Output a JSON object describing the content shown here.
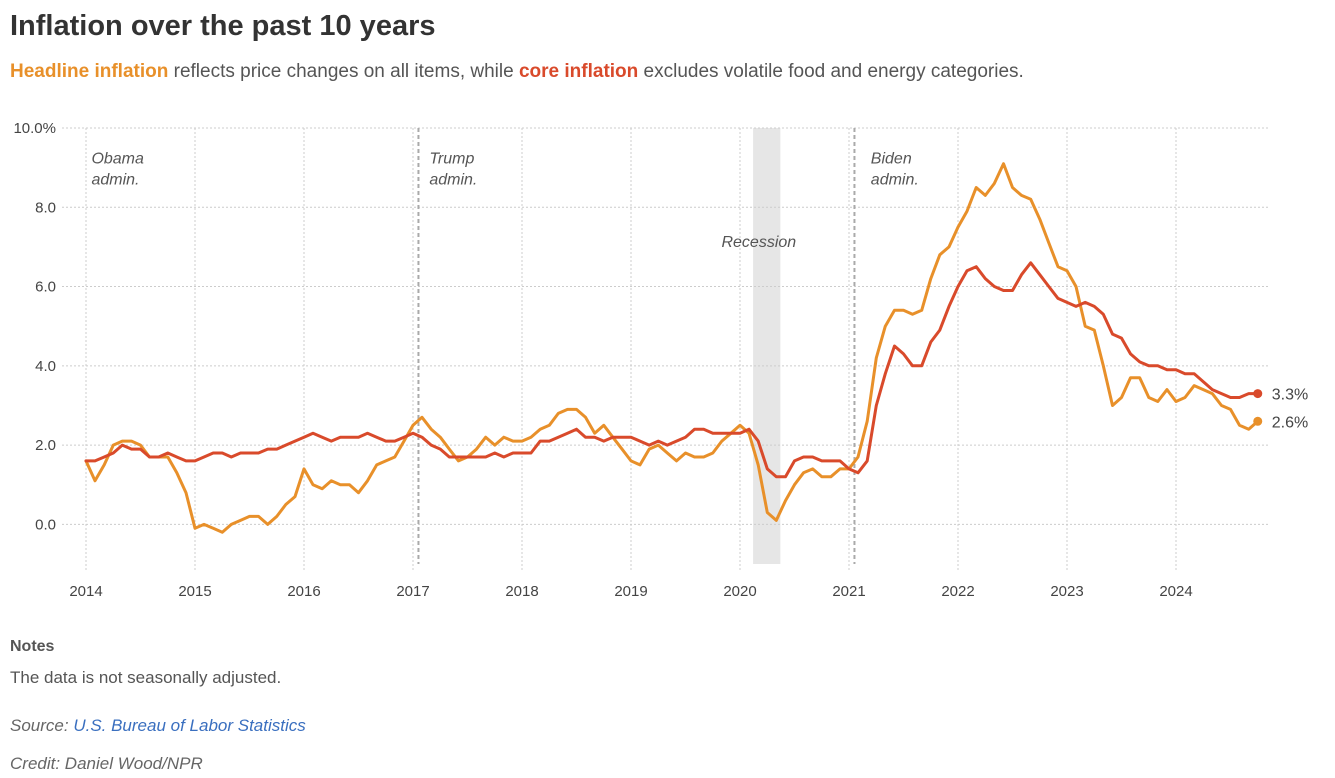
{
  "header": {
    "title": "Inflation over the past 10 years",
    "subtitle_headline": "Headline inflation",
    "subtitle_mid": " reflects price changes on all items, while ",
    "subtitle_core": "core inflation",
    "subtitle_end": " excludes volatile food and energy categories."
  },
  "colors": {
    "headline": "#e8902a",
    "core": "#d94a2b",
    "grid": "#cccccc",
    "recession": "#e6e6e6"
  },
  "chart_data": {
    "type": "line",
    "title": "Inflation over the past 10 years",
    "xlim": [
      2014,
      2024.9
    ],
    "ylim": [
      -1,
      10
    ],
    "y_ticks": [
      10.0,
      8.0,
      6.0,
      4.0,
      2.0,
      0.0
    ],
    "y_tick_labels": [
      "10.0%",
      "8.0",
      "6.0",
      "4.0",
      "2.0",
      "0.0"
    ],
    "x_ticks": [
      2014,
      2015,
      2016,
      2017,
      2018,
      2019,
      2020,
      2021,
      2022,
      2023,
      2024
    ],
    "x_tick_labels": [
      "2014",
      "2015",
      "2016",
      "2017",
      "2018",
      "2019",
      "2020",
      "2021",
      "2022",
      "2023",
      "2024"
    ],
    "grid": true,
    "annotations": [
      {
        "lines": [
          "Obama",
          "admin."
        ],
        "x": 2014.05,
        "y": 9.1
      },
      {
        "lines": [
          "Trump",
          "admin."
        ],
        "x": 2017.15,
        "y": 9.1
      },
      {
        "lines": [
          "Recession"
        ],
        "x": 2019.83,
        "y": 7.0
      },
      {
        "lines": [
          "Biden",
          "admin."
        ],
        "x": 2021.2,
        "y": 9.1
      }
    ],
    "admin_changes": [
      2017.05,
      2021.05
    ],
    "recession": [
      2020.12,
      2020.37
    ],
    "series": [
      {
        "name": "Headline inflation",
        "key": "headline",
        "end_label": "2.6%",
        "points": [
          [
            2014.0,
            1.6
          ],
          [
            2014.083,
            1.1
          ],
          [
            2014.167,
            1.5
          ],
          [
            2014.25,
            2.0
          ],
          [
            2014.333,
            2.1
          ],
          [
            2014.417,
            2.1
          ],
          [
            2014.5,
            2.0
          ],
          [
            2014.583,
            1.7
          ],
          [
            2014.667,
            1.7
          ],
          [
            2014.75,
            1.7
          ],
          [
            2014.833,
            1.3
          ],
          [
            2014.917,
            0.8
          ],
          [
            2015.0,
            -0.1
          ],
          [
            2015.083,
            0.0
          ],
          [
            2015.167,
            -0.1
          ],
          [
            2015.25,
            -0.2
          ],
          [
            2015.333,
            0.0
          ],
          [
            2015.417,
            0.1
          ],
          [
            2015.5,
            0.2
          ],
          [
            2015.583,
            0.2
          ],
          [
            2015.667,
            0.0
          ],
          [
            2015.75,
            0.2
          ],
          [
            2015.833,
            0.5
          ],
          [
            2015.917,
            0.7
          ],
          [
            2016.0,
            1.4
          ],
          [
            2016.083,
            1.0
          ],
          [
            2016.167,
            0.9
          ],
          [
            2016.25,
            1.1
          ],
          [
            2016.333,
            1.0
          ],
          [
            2016.417,
            1.0
          ],
          [
            2016.5,
            0.8
          ],
          [
            2016.583,
            1.1
          ],
          [
            2016.667,
            1.5
          ],
          [
            2016.75,
            1.6
          ],
          [
            2016.833,
            1.7
          ],
          [
            2016.917,
            2.1
          ],
          [
            2017.0,
            2.5
          ],
          [
            2017.083,
            2.7
          ],
          [
            2017.167,
            2.4
          ],
          [
            2017.25,
            2.2
          ],
          [
            2017.333,
            1.9
          ],
          [
            2017.417,
            1.6
          ],
          [
            2017.5,
            1.7
          ],
          [
            2017.583,
            1.9
          ],
          [
            2017.667,
            2.2
          ],
          [
            2017.75,
            2.0
          ],
          [
            2017.833,
            2.2
          ],
          [
            2017.917,
            2.1
          ],
          [
            2018.0,
            2.1
          ],
          [
            2018.083,
            2.2
          ],
          [
            2018.167,
            2.4
          ],
          [
            2018.25,
            2.5
          ],
          [
            2018.333,
            2.8
          ],
          [
            2018.417,
            2.9
          ],
          [
            2018.5,
            2.9
          ],
          [
            2018.583,
            2.7
          ],
          [
            2018.667,
            2.3
          ],
          [
            2018.75,
            2.5
          ],
          [
            2018.833,
            2.2
          ],
          [
            2018.917,
            1.9
          ],
          [
            2019.0,
            1.6
          ],
          [
            2019.083,
            1.5
          ],
          [
            2019.167,
            1.9
          ],
          [
            2019.25,
            2.0
          ],
          [
            2019.333,
            1.8
          ],
          [
            2019.417,
            1.6
          ],
          [
            2019.5,
            1.8
          ],
          [
            2019.583,
            1.7
          ],
          [
            2019.667,
            1.7
          ],
          [
            2019.75,
            1.8
          ],
          [
            2019.833,
            2.1
          ],
          [
            2019.917,
            2.3
          ],
          [
            2020.0,
            2.5
          ],
          [
            2020.083,
            2.3
          ],
          [
            2020.167,
            1.5
          ],
          [
            2020.25,
            0.3
          ],
          [
            2020.333,
            0.1
          ],
          [
            2020.417,
            0.6
          ],
          [
            2020.5,
            1.0
          ],
          [
            2020.583,
            1.3
          ],
          [
            2020.667,
            1.4
          ],
          [
            2020.75,
            1.2
          ],
          [
            2020.833,
            1.2
          ],
          [
            2020.917,
            1.4
          ],
          [
            2021.0,
            1.4
          ],
          [
            2021.083,
            1.7
          ],
          [
            2021.167,
            2.6
          ],
          [
            2021.25,
            4.2
          ],
          [
            2021.333,
            5.0
          ],
          [
            2021.417,
            5.4
          ],
          [
            2021.5,
            5.4
          ],
          [
            2021.583,
            5.3
          ],
          [
            2021.667,
            5.4
          ],
          [
            2021.75,
            6.2
          ],
          [
            2021.833,
            6.8
          ],
          [
            2021.917,
            7.0
          ],
          [
            2022.0,
            7.5
          ],
          [
            2022.083,
            7.9
          ],
          [
            2022.167,
            8.5
          ],
          [
            2022.25,
            8.3
          ],
          [
            2022.333,
            8.6
          ],
          [
            2022.417,
            9.1
          ],
          [
            2022.5,
            8.5
          ],
          [
            2022.583,
            8.3
          ],
          [
            2022.667,
            8.2
          ],
          [
            2022.75,
            7.7
          ],
          [
            2022.833,
            7.1
          ],
          [
            2022.917,
            6.5
          ],
          [
            2023.0,
            6.4
          ],
          [
            2023.083,
            6.0
          ],
          [
            2023.167,
            5.0
          ],
          [
            2023.25,
            4.9
          ],
          [
            2023.333,
            4.0
          ],
          [
            2023.417,
            3.0
          ],
          [
            2023.5,
            3.2
          ],
          [
            2023.583,
            3.7
          ],
          [
            2023.667,
            3.7
          ],
          [
            2023.75,
            3.2
          ],
          [
            2023.833,
            3.1
          ],
          [
            2023.917,
            3.4
          ],
          [
            2024.0,
            3.1
          ],
          [
            2024.083,
            3.2
          ],
          [
            2024.167,
            3.5
          ],
          [
            2024.25,
            3.4
          ],
          [
            2024.333,
            3.3
          ],
          [
            2024.417,
            3.0
          ],
          [
            2024.5,
            2.9
          ],
          [
            2024.583,
            2.5
          ],
          [
            2024.667,
            2.4
          ],
          [
            2024.75,
            2.6
          ]
        ]
      },
      {
        "name": "Core inflation",
        "key": "core",
        "end_label": "3.3%",
        "points": [
          [
            2014.0,
            1.6
          ],
          [
            2014.083,
            1.6
          ],
          [
            2014.167,
            1.7
          ],
          [
            2014.25,
            1.8
          ],
          [
            2014.333,
            2.0
          ],
          [
            2014.417,
            1.9
          ],
          [
            2014.5,
            1.9
          ],
          [
            2014.583,
            1.7
          ],
          [
            2014.667,
            1.7
          ],
          [
            2014.75,
            1.8
          ],
          [
            2014.833,
            1.7
          ],
          [
            2014.917,
            1.6
          ],
          [
            2015.0,
            1.6
          ],
          [
            2015.083,
            1.7
          ],
          [
            2015.167,
            1.8
          ],
          [
            2015.25,
            1.8
          ],
          [
            2015.333,
            1.7
          ],
          [
            2015.417,
            1.8
          ],
          [
            2015.5,
            1.8
          ],
          [
            2015.583,
            1.8
          ],
          [
            2015.667,
            1.9
          ],
          [
            2015.75,
            1.9
          ],
          [
            2015.833,
            2.0
          ],
          [
            2015.917,
            2.1
          ],
          [
            2016.0,
            2.2
          ],
          [
            2016.083,
            2.3
          ],
          [
            2016.167,
            2.2
          ],
          [
            2016.25,
            2.1
          ],
          [
            2016.333,
            2.2
          ],
          [
            2016.417,
            2.2
          ],
          [
            2016.5,
            2.2
          ],
          [
            2016.583,
            2.3
          ],
          [
            2016.667,
            2.2
          ],
          [
            2016.75,
            2.1
          ],
          [
            2016.833,
            2.1
          ],
          [
            2016.917,
            2.2
          ],
          [
            2017.0,
            2.3
          ],
          [
            2017.083,
            2.2
          ],
          [
            2017.167,
            2.0
          ],
          [
            2017.25,
            1.9
          ],
          [
            2017.333,
            1.7
          ],
          [
            2017.417,
            1.7
          ],
          [
            2017.5,
            1.7
          ],
          [
            2017.583,
            1.7
          ],
          [
            2017.667,
            1.7
          ],
          [
            2017.75,
            1.8
          ],
          [
            2017.833,
            1.7
          ],
          [
            2017.917,
            1.8
          ],
          [
            2018.0,
            1.8
          ],
          [
            2018.083,
            1.8
          ],
          [
            2018.167,
            2.1
          ],
          [
            2018.25,
            2.1
          ],
          [
            2018.333,
            2.2
          ],
          [
            2018.417,
            2.3
          ],
          [
            2018.5,
            2.4
          ],
          [
            2018.583,
            2.2
          ],
          [
            2018.667,
            2.2
          ],
          [
            2018.75,
            2.1
          ],
          [
            2018.833,
            2.2
          ],
          [
            2018.917,
            2.2
          ],
          [
            2019.0,
            2.2
          ],
          [
            2019.083,
            2.1
          ],
          [
            2019.167,
            2.0
          ],
          [
            2019.25,
            2.1
          ],
          [
            2019.333,
            2.0
          ],
          [
            2019.417,
            2.1
          ],
          [
            2019.5,
            2.2
          ],
          [
            2019.583,
            2.4
          ],
          [
            2019.667,
            2.4
          ],
          [
            2019.75,
            2.3
          ],
          [
            2019.833,
            2.3
          ],
          [
            2019.917,
            2.3
          ],
          [
            2020.0,
            2.3
          ],
          [
            2020.083,
            2.4
          ],
          [
            2020.167,
            2.1
          ],
          [
            2020.25,
            1.4
          ],
          [
            2020.333,
            1.2
          ],
          [
            2020.417,
            1.2
          ],
          [
            2020.5,
            1.6
          ],
          [
            2020.583,
            1.7
          ],
          [
            2020.667,
            1.7
          ],
          [
            2020.75,
            1.6
          ],
          [
            2020.833,
            1.6
          ],
          [
            2020.917,
            1.6
          ],
          [
            2021.0,
            1.4
          ],
          [
            2021.083,
            1.3
          ],
          [
            2021.167,
            1.6
          ],
          [
            2021.25,
            3.0
          ],
          [
            2021.333,
            3.8
          ],
          [
            2021.417,
            4.5
          ],
          [
            2021.5,
            4.3
          ],
          [
            2021.583,
            4.0
          ],
          [
            2021.667,
            4.0
          ],
          [
            2021.75,
            4.6
          ],
          [
            2021.833,
            4.9
          ],
          [
            2021.917,
            5.5
          ],
          [
            2022.0,
            6.0
          ],
          [
            2022.083,
            6.4
          ],
          [
            2022.167,
            6.5
          ],
          [
            2022.25,
            6.2
          ],
          [
            2022.333,
            6.0
          ],
          [
            2022.417,
            5.9
          ],
          [
            2022.5,
            5.9
          ],
          [
            2022.583,
            6.3
          ],
          [
            2022.667,
            6.6
          ],
          [
            2022.75,
            6.3
          ],
          [
            2022.833,
            6.0
          ],
          [
            2022.917,
            5.7
          ],
          [
            2023.0,
            5.6
          ],
          [
            2023.083,
            5.5
          ],
          [
            2023.167,
            5.6
          ],
          [
            2023.25,
            5.5
          ],
          [
            2023.333,
            5.3
          ],
          [
            2023.417,
            4.8
          ],
          [
            2023.5,
            4.7
          ],
          [
            2023.583,
            4.3
          ],
          [
            2023.667,
            4.1
          ],
          [
            2023.75,
            4.0
          ],
          [
            2023.833,
            4.0
          ],
          [
            2023.917,
            3.9
          ],
          [
            2024.0,
            3.9
          ],
          [
            2024.083,
            3.8
          ],
          [
            2024.167,
            3.8
          ],
          [
            2024.25,
            3.6
          ],
          [
            2024.333,
            3.4
          ],
          [
            2024.417,
            3.3
          ],
          [
            2024.5,
            3.2
          ],
          [
            2024.583,
            3.2
          ],
          [
            2024.667,
            3.3
          ],
          [
            2024.75,
            3.3
          ]
        ]
      }
    ]
  },
  "notes": {
    "title": "Notes",
    "text": "The data is not seasonally adjusted."
  },
  "source": {
    "label": "Source: ",
    "link_text": "U.S. Bureau of Labor Statistics"
  },
  "credit": "Credit: Daniel Wood/NPR"
}
